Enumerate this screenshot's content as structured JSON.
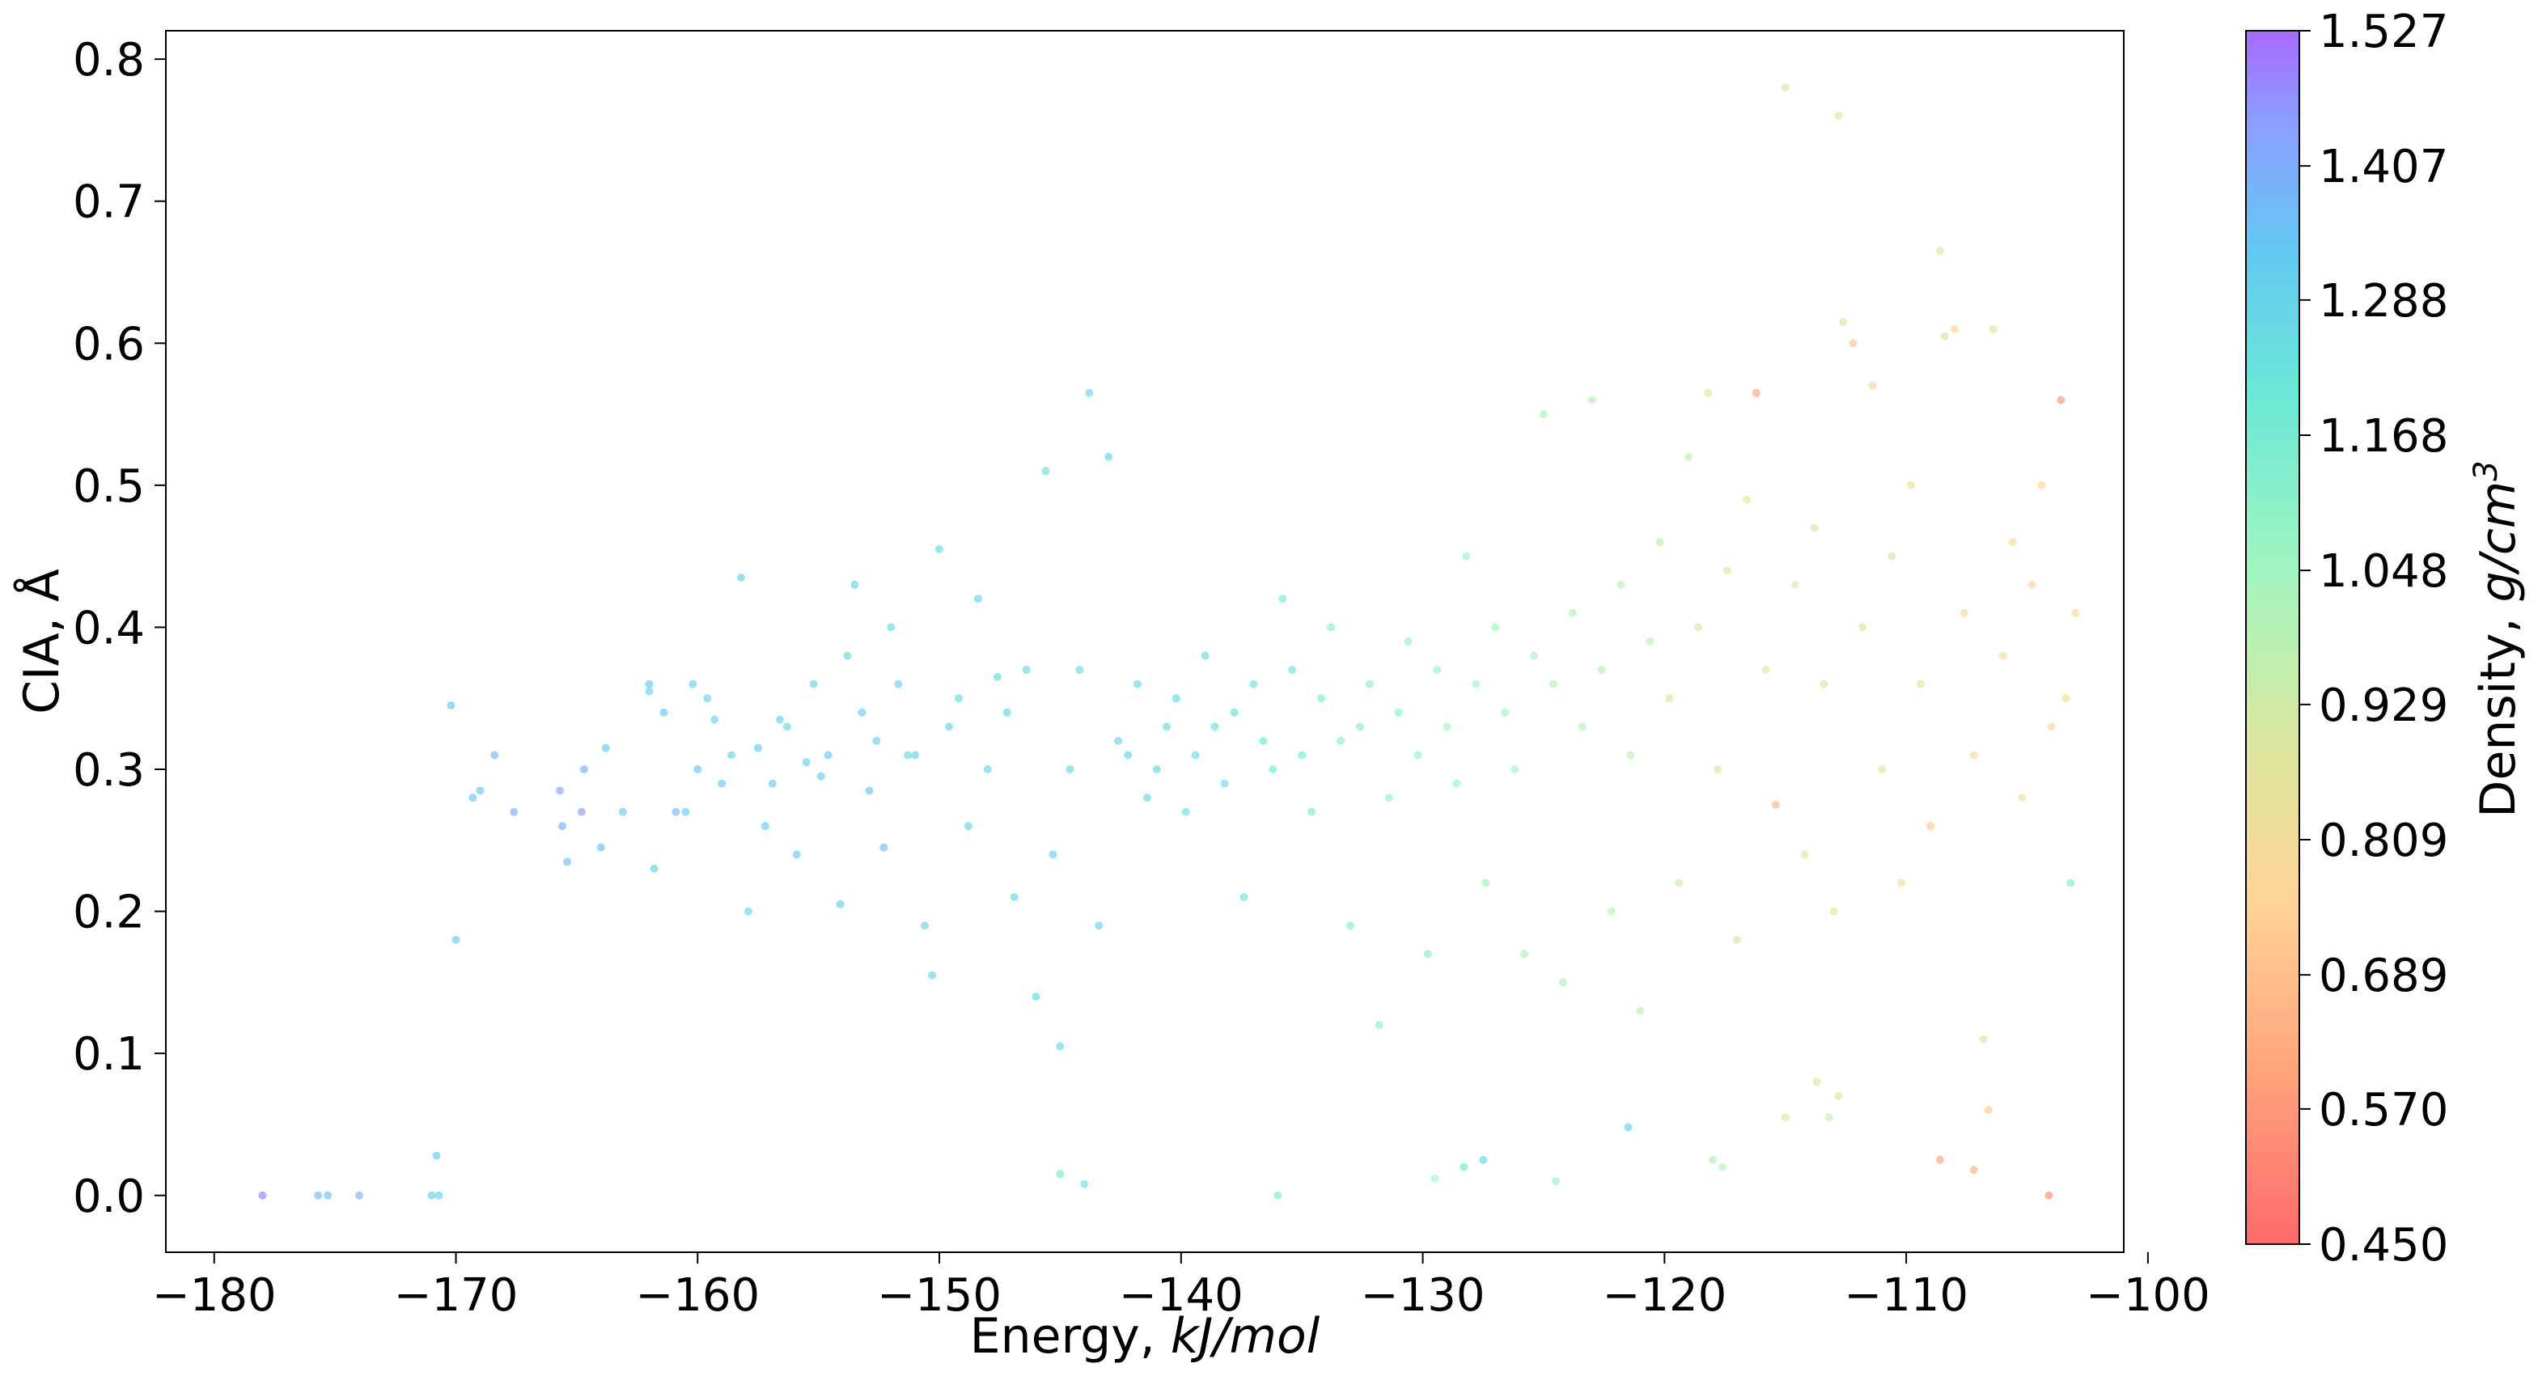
{
  "chart_data": {
    "type": "scatter",
    "xlabel": "Energy, ",
    "xlabel_unit": "kJ/mol",
    "ylabel": "CIA, Å",
    "colorbar_label": "Density, ",
    "colorbar_unit_base": "g/cm",
    "colorbar_unit_exp": "3",
    "xlim": [
      -182,
      -101
    ],
    "ylim": [
      -0.04,
      0.82
    ],
    "x_ticks": [
      -180,
      -170,
      -160,
      -150,
      -140,
      -130,
      -120,
      -110,
      -100
    ],
    "x_tick_labels": [
      "−180",
      "−170",
      "−160",
      "−150",
      "−140",
      "−130",
      "−120",
      "−110",
      "−100"
    ],
    "y_ticks": [
      0.0,
      0.1,
      0.2,
      0.3,
      0.4,
      0.5,
      0.6,
      0.7,
      0.8
    ],
    "y_tick_labels": [
      "0.0",
      "0.1",
      "0.2",
      "0.3",
      "0.4",
      "0.5",
      "0.6",
      "0.7",
      "0.8"
    ],
    "colorbar_ticks": [
      0.45,
      0.57,
      0.689,
      0.809,
      0.929,
      1.048,
      1.168,
      1.288,
      1.407,
      1.527
    ],
    "colorbar_tick_labels": [
      "0.450",
      "0.570",
      "0.689",
      "0.809",
      "0.929",
      "1.048",
      "1.168",
      "1.288",
      "1.407",
      "1.527"
    ],
    "color_range": [
      0.45,
      1.527
    ],
    "colormap": "rainbow_r",
    "point_alpha": 0.65,
    "grid": false,
    "points": [
      [
        -178.0,
        0.0,
        1.5
      ],
      [
        -175.7,
        0.0,
        1.38
      ],
      [
        -175.3,
        0.0,
        1.36
      ],
      [
        -174.0,
        0.0,
        1.4
      ],
      [
        -171.0,
        0.0,
        1.3
      ],
      [
        -170.7,
        0.0,
        1.31
      ],
      [
        -170.8,
        0.028,
        1.32
      ],
      [
        -170.2,
        0.345,
        1.34
      ],
      [
        -170.0,
        0.18,
        1.3
      ],
      [
        -169.3,
        0.28,
        1.35
      ],
      [
        -169.0,
        0.285,
        1.34
      ],
      [
        -168.4,
        0.31,
        1.38
      ],
      [
        -167.6,
        0.27,
        1.4
      ],
      [
        -165.7,
        0.285,
        1.42
      ],
      [
        -165.6,
        0.26,
        1.4
      ],
      [
        -165.4,
        0.235,
        1.36
      ],
      [
        -164.8,
        0.27,
        1.45
      ],
      [
        -164.7,
        0.3,
        1.4
      ],
      [
        -164.0,
        0.245,
        1.35
      ],
      [
        -163.8,
        0.315,
        1.34
      ],
      [
        -163.1,
        0.27,
        1.33
      ],
      [
        -162.0,
        0.355,
        1.3
      ],
      [
        -162.0,
        0.36,
        1.32
      ],
      [
        -161.8,
        0.23,
        1.3
      ],
      [
        -161.4,
        0.34,
        1.33
      ],
      [
        -160.9,
        0.27,
        1.38
      ],
      [
        -160.5,
        0.27,
        1.32
      ],
      [
        -160.2,
        0.36,
        1.31
      ],
      [
        -160.0,
        0.3,
        1.34
      ],
      [
        -159.6,
        0.35,
        1.3
      ],
      [
        -159.3,
        0.335,
        1.28
      ],
      [
        -159.0,
        0.29,
        1.33
      ],
      [
        -158.6,
        0.31,
        1.29
      ],
      [
        -158.2,
        0.435,
        1.3
      ],
      [
        -157.9,
        0.2,
        1.28
      ],
      [
        -157.5,
        0.315,
        1.33
      ],
      [
        -157.2,
        0.26,
        1.31
      ],
      [
        -156.9,
        0.29,
        1.3
      ],
      [
        -156.6,
        0.335,
        1.29
      ],
      [
        -156.3,
        0.33,
        1.27
      ],
      [
        -155.9,
        0.24,
        1.3
      ],
      [
        -155.5,
        0.305,
        1.32
      ],
      [
        -155.2,
        0.36,
        1.29
      ],
      [
        -154.9,
        0.295,
        1.3
      ],
      [
        -154.6,
        0.31,
        1.33
      ],
      [
        -154.1,
        0.205,
        1.3
      ],
      [
        -153.8,
        0.38,
        1.28
      ],
      [
        -153.5,
        0.43,
        1.29
      ],
      [
        -153.2,
        0.34,
        1.31
      ],
      [
        -152.9,
        0.285,
        1.34
      ],
      [
        -152.6,
        0.32,
        1.31
      ],
      [
        -152.3,
        0.245,
        1.38
      ],
      [
        -152.0,
        0.4,
        1.27
      ],
      [
        -151.7,
        0.36,
        1.3
      ],
      [
        -151.3,
        0.31,
        1.28
      ],
      [
        -151.0,
        0.31,
        1.29
      ],
      [
        -150.6,
        0.19,
        1.3
      ],
      [
        -150.3,
        0.155,
        1.27
      ],
      [
        -150.0,
        0.455,
        1.26
      ],
      [
        -149.6,
        0.33,
        1.28
      ],
      [
        -149.2,
        0.35,
        1.27
      ],
      [
        -148.8,
        0.26,
        1.29
      ],
      [
        -148.4,
        0.42,
        1.28
      ],
      [
        -148.0,
        0.3,
        1.3
      ],
      [
        -147.6,
        0.365,
        1.27
      ],
      [
        -147.2,
        0.34,
        1.28
      ],
      [
        -146.9,
        0.21,
        1.29
      ],
      [
        -146.4,
        0.37,
        1.27
      ],
      [
        -146.0,
        0.14,
        1.28
      ],
      [
        -145.6,
        0.51,
        1.25
      ],
      [
        -145.3,
        0.24,
        1.3
      ],
      [
        -145.0,
        0.105,
        1.27
      ],
      [
        -144.6,
        0.3,
        1.28
      ],
      [
        -144.2,
        0.37,
        1.26
      ],
      [
        -143.8,
        0.565,
        1.28
      ],
      [
        -143.4,
        0.19,
        1.29
      ],
      [
        -143.0,
        0.52,
        1.27
      ],
      [
        -142.6,
        0.32,
        1.28
      ],
      [
        -142.2,
        0.31,
        1.29
      ],
      [
        -141.8,
        0.36,
        1.27
      ],
      [
        -141.4,
        0.28,
        1.28
      ],
      [
        -141.0,
        0.3,
        1.29
      ],
      [
        -140.6,
        0.33,
        1.27
      ],
      [
        -140.2,
        0.35,
        1.28
      ],
      [
        -139.8,
        0.27,
        1.24
      ],
      [
        -139.4,
        0.31,
        1.26
      ],
      [
        -139.0,
        0.38,
        1.27
      ],
      [
        -138.6,
        0.33,
        1.22
      ],
      [
        -138.2,
        0.29,
        1.25
      ],
      [
        -137.8,
        0.34,
        1.24
      ],
      [
        -137.4,
        0.21,
        1.23
      ],
      [
        -137.0,
        0.36,
        1.22
      ],
      [
        -136.6,
        0.32,
        1.2
      ],
      [
        -136.2,
        0.3,
        1.19
      ],
      [
        -135.8,
        0.42,
        1.18
      ],
      [
        -135.4,
        0.37,
        1.2
      ],
      [
        -135.0,
        0.31,
        1.17
      ],
      [
        -134.6,
        0.27,
        1.16
      ],
      [
        -134.2,
        0.35,
        1.15
      ],
      [
        -133.8,
        0.4,
        1.14
      ],
      [
        -133.4,
        0.32,
        1.13
      ],
      [
        -133.0,
        0.19,
        1.15
      ],
      [
        -132.6,
        0.33,
        1.12
      ],
      [
        -132.2,
        0.36,
        1.11
      ],
      [
        -131.8,
        0.12,
        1.12
      ],
      [
        -131.4,
        0.28,
        1.1
      ],
      [
        -131.0,
        0.34,
        1.12
      ],
      [
        -130.6,
        0.39,
        1.09
      ],
      [
        -130.2,
        0.31,
        1.1
      ],
      [
        -129.8,
        0.17,
        1.11
      ],
      [
        -129.4,
        0.37,
        1.08
      ],
      [
        -129.0,
        0.33,
        1.07
      ],
      [
        -128.6,
        0.29,
        1.08
      ],
      [
        -128.2,
        0.45,
        1.06
      ],
      [
        -127.8,
        0.36,
        1.07
      ],
      [
        -127.4,
        0.22,
        1.06
      ],
      [
        -127.0,
        0.4,
        1.05
      ],
      [
        -126.6,
        0.34,
        1.04
      ],
      [
        -126.2,
        0.3,
        1.05
      ],
      [
        -125.8,
        0.17,
        1.03
      ],
      [
        -125.4,
        0.38,
        1.02
      ],
      [
        -125.0,
        0.55,
        1.03
      ],
      [
        -124.6,
        0.36,
        1.02
      ],
      [
        -124.2,
        0.15,
        1.01
      ],
      [
        -123.8,
        0.41,
        1.0
      ],
      [
        -123.4,
        0.33,
        1.01
      ],
      [
        -123.0,
        0.56,
        0.99
      ],
      [
        -122.6,
        0.37,
        1.0
      ],
      [
        -122.2,
        0.2,
        0.98
      ],
      [
        -121.8,
        0.43,
        0.99
      ],
      [
        -121.4,
        0.31,
        0.97
      ],
      [
        -121.0,
        0.13,
        0.98
      ],
      [
        -120.6,
        0.39,
        0.96
      ],
      [
        -120.2,
        0.46,
        0.97
      ],
      [
        -119.8,
        0.35,
        0.95
      ],
      [
        -119.4,
        0.22,
        0.94
      ],
      [
        -119.0,
        0.52,
        0.95
      ],
      [
        -118.6,
        0.4,
        0.93
      ],
      [
        -118.2,
        0.565,
        0.9
      ],
      [
        -117.8,
        0.3,
        0.92
      ],
      [
        -117.4,
        0.44,
        0.91
      ],
      [
        -117.0,
        0.18,
        0.92
      ],
      [
        -116.6,
        0.49,
        0.9
      ],
      [
        -116.2,
        0.565,
        0.6
      ],
      [
        -115.8,
        0.37,
        0.89
      ],
      [
        -115.4,
        0.275,
        0.65
      ],
      [
        -115.0,
        0.78,
        0.92
      ],
      [
        -114.6,
        0.43,
        0.88
      ],
      [
        -114.2,
        0.24,
        0.87
      ],
      [
        -113.8,
        0.47,
        0.86
      ],
      [
        -113.4,
        0.36,
        0.88
      ],
      [
        -113.0,
        0.2,
        0.85
      ],
      [
        -112.8,
        0.76,
        0.9
      ],
      [
        -112.6,
        0.615,
        0.88
      ],
      [
        -112.2,
        0.6,
        0.7
      ],
      [
        -111.8,
        0.4,
        0.84
      ],
      [
        -111.4,
        0.57,
        0.75
      ],
      [
        -111.0,
        0.3,
        0.86
      ],
      [
        -110.6,
        0.45,
        0.83
      ],
      [
        -110.2,
        0.22,
        0.82
      ],
      [
        -109.8,
        0.5,
        0.84
      ],
      [
        -109.4,
        0.36,
        0.8
      ],
      [
        -109.0,
        0.26,
        0.7
      ],
      [
        -108.6,
        0.665,
        0.88
      ],
      [
        -108.4,
        0.605,
        0.85
      ],
      [
        -108.0,
        0.61,
        0.75
      ],
      [
        -107.6,
        0.41,
        0.81
      ],
      [
        -107.2,
        0.31,
        0.8
      ],
      [
        -106.8,
        0.11,
        0.86
      ],
      [
        -106.6,
        0.06,
        0.72
      ],
      [
        -106.4,
        0.61,
        0.86
      ],
      [
        -106.0,
        0.38,
        0.79
      ],
      [
        -105.6,
        0.46,
        0.8
      ],
      [
        -105.2,
        0.28,
        0.82
      ],
      [
        -104.8,
        0.43,
        0.78
      ],
      [
        -104.4,
        0.5,
        0.76
      ],
      [
        -104.0,
        0.33,
        0.8
      ],
      [
        -103.6,
        0.56,
        0.55
      ],
      [
        -103.4,
        0.35,
        0.82
      ],
      [
        -103.2,
        0.22,
        1.15
      ],
      [
        -103.0,
        0.41,
        0.79
      ],
      [
        -145.0,
        0.015,
        1.18
      ],
      [
        -144.0,
        0.008,
        1.22
      ],
      [
        -136.0,
        0.0,
        1.15
      ],
      [
        -129.5,
        0.012,
        1.05
      ],
      [
        -128.3,
        0.02,
        1.2
      ],
      [
        -127.5,
        0.025,
        1.3
      ],
      [
        -124.5,
        0.01,
        1.1
      ],
      [
        -121.5,
        0.048,
        1.3
      ],
      [
        -118.0,
        0.025,
        1.0
      ],
      [
        -117.6,
        0.02,
        1.02
      ],
      [
        -115.0,
        0.055,
        0.9
      ],
      [
        -113.7,
        0.08,
        0.88
      ],
      [
        -113.2,
        0.055,
        0.95
      ],
      [
        -112.8,
        0.07,
        0.85
      ],
      [
        -108.6,
        0.025,
        0.6
      ],
      [
        -107.2,
        0.018,
        0.65
      ],
      [
        -104.1,
        0.0,
        0.55
      ]
    ]
  }
}
